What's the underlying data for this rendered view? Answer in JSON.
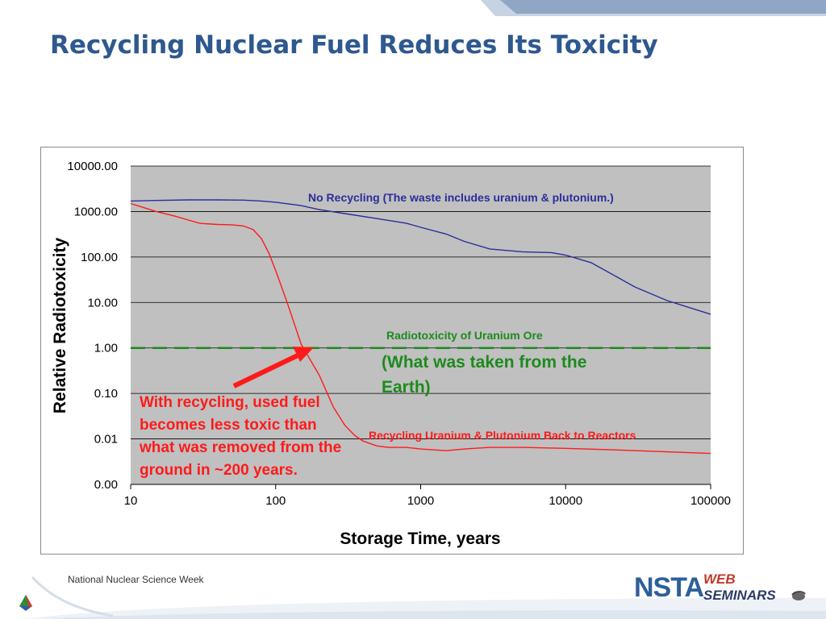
{
  "slide": {
    "title": "Recycling Nuclear Fuel Reduces Its Toxicity",
    "footer_text": "National Nuclear Science Week",
    "logo": {
      "brand": "NSTA",
      "tag_top": "WEB",
      "tag_bottom": "SEMINARS"
    }
  },
  "colors": {
    "title": "#2e5890",
    "plot_bg": "#c0c0c0",
    "no_recycling": "#2a2e9a",
    "recycling": "#ff1a1a",
    "ore": "#1d8a1d",
    "banner_light": "#c7d3e3",
    "banner_dark": "#8fa7c4"
  },
  "chart_data": {
    "type": "line",
    "xlabel": "Storage Time, years",
    "ylabel": "Relative Radiotoxicity",
    "x_scale": "log",
    "y_scale": "log",
    "xlim": [
      10,
      100000
    ],
    "ylim": [
      0.001,
      10000
    ],
    "x_ticks": [
      10,
      100,
      1000,
      10000,
      100000
    ],
    "x_tick_labels": [
      "10",
      "100",
      "1000",
      "10000",
      "100000"
    ],
    "y_ticks": [
      0.001,
      0.01,
      0.1,
      1,
      10,
      100,
      1000,
      10000
    ],
    "y_tick_labels": [
      "0.00",
      "0.01",
      "0.10",
      "1.00",
      "10.00",
      "100.00",
      "1000.00",
      "10000.00"
    ],
    "grid": "horizontal",
    "series": [
      {
        "name": "No Recycling (The waste includes uranium & plutonium.)",
        "color": "#2a2e9a",
        "x": [
          10,
          15,
          25,
          40,
          60,
          80,
          100,
          150,
          200,
          300,
          500,
          800,
          1000,
          1500,
          2000,
          3000,
          5000,
          8000,
          10000,
          15000,
          20000,
          30000,
          50000,
          100000
        ],
        "y": [
          1700,
          1750,
          1800,
          1800,
          1780,
          1700,
          1600,
          1350,
          1100,
          900,
          700,
          550,
          450,
          320,
          220,
          150,
          130,
          125,
          110,
          75,
          45,
          22,
          11,
          5.5
        ]
      },
      {
        "name": "Recycling Uranium & Plutonium Back to Reactors",
        "color": "#ff1a1a",
        "x": [
          10,
          15,
          20,
          25,
          30,
          40,
          50,
          60,
          70,
          80,
          90,
          100,
          120,
          150,
          200,
          250,
          300,
          350,
          400,
          500,
          600,
          800,
          1000,
          1500,
          2000,
          3000,
          5000,
          10000,
          20000,
          50000,
          100000
        ],
        "y": [
          1500,
          1000,
          800,
          650,
          550,
          520,
          510,
          480,
          400,
          250,
          120,
          50,
          10,
          1.2,
          0.25,
          0.05,
          0.02,
          0.012,
          0.009,
          0.007,
          0.0065,
          0.0065,
          0.006,
          0.0055,
          0.006,
          0.0065,
          0.0065,
          0.0062,
          0.0058,
          0.0052,
          0.0048
        ]
      },
      {
        "name": "Radiotoxicity of Uranium Ore",
        "color": "#1d8a1d",
        "dashed": true,
        "x": [
          10,
          100000
        ],
        "y": [
          1,
          1
        ]
      }
    ],
    "annotations": {
      "no_recycling_label": "No Recycling (The waste includes uranium & plutonium.)",
      "ore_label": "Radiotoxicity of Uranium Ore",
      "ore_sub_label": "(What was taken from the Earth)",
      "recycling_label": "Recycling Uranium & Plutonium Back to Reactors",
      "callout": "With recycling, used fuel becomes less toxic than what was removed from the ground in ~200 years."
    }
  }
}
